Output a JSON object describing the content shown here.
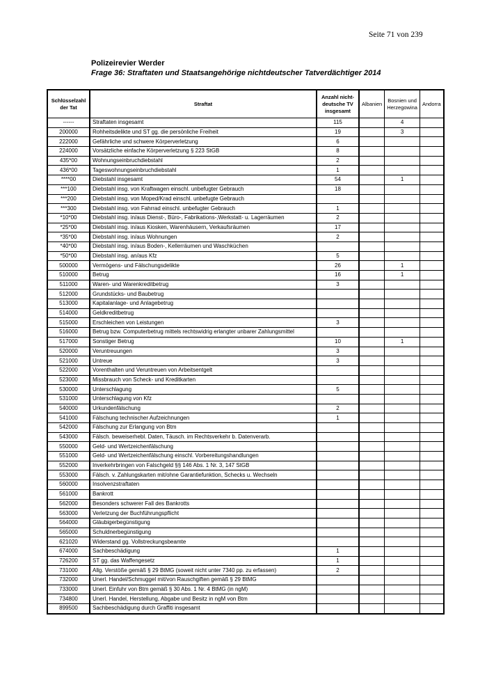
{
  "page_number": "Seite 71 von 239",
  "title": "Polizeirevier Werder",
  "subtitle": "Frage 36: Straftaten und Staatsangehörige nichtdeutscher Tatverdächtiger 2014",
  "table": {
    "headers": [
      "Schlüsselzahl der Tat",
      "Straftat",
      "Anzahl nicht-deutsche TV insgesamt",
      "Albanien",
      "Bosnien und Herzegowina",
      "Andorra"
    ],
    "rows": [
      [
        "------",
        "Straftaten insgesamt",
        "115",
        "",
        "4",
        ""
      ],
      [
        "200000",
        "Rohheitsdelikte und ST gg. die persönliche Freiheit",
        "19",
        "",
        "3",
        ""
      ],
      [
        "222000",
        "Gefährliche und schwere Körperverletzung",
        "6",
        "",
        "",
        ""
      ],
      [
        "224000",
        "Vorsätzliche einfache Körperverletzung § 223 StGB",
        "8",
        "",
        "",
        ""
      ],
      [
        "435*00",
        "Wohnungseinbruchdiebstahl",
        "2",
        "",
        "",
        ""
      ],
      [
        "436*00",
        "Tageswohnungseinbruchdiebstahl",
        "1",
        "",
        "",
        ""
      ],
      [
        "****00",
        "Diebstahl insgesamt",
        "54",
        "",
        "1",
        ""
      ],
      [
        "***100",
        "Diebstahl insg. von Kraftwagen einschl. unbefugter Gebrauch",
        "18",
        "",
        "",
        ""
      ],
      [
        "***200",
        "Diebstahl insg. von Moped/Krad einschl. unbefugte Gebrauch",
        "",
        "",
        "",
        ""
      ],
      [
        "***300",
        "Diebstahl insg. von Fahrrad einschl. unbefugter Gebrauch",
        "1",
        "",
        "",
        ""
      ],
      [
        "*10*00",
        "Diebstahl insg. in/aus Dienst-, Büro-, Fabrikations-,Werkstatt- u. Lagerräumen",
        "2",
        "",
        "",
        ""
      ],
      [
        "*25*00",
        "Diebstahl insg. in/aus Kiosken, Warenhäusern, Verkaufsräumen",
        "17",
        "",
        "",
        ""
      ],
      [
        "*35*00",
        "Diebstahl insg. in/aus Wohnungen",
        "2",
        "",
        "",
        ""
      ],
      [
        "*40*00",
        "Diebstahl insg. in/aus Boden-, Kellerräumen und Waschküchen",
        "",
        "",
        "",
        ""
      ],
      [
        "*50*00",
        "Diebstahl insg. an/aus Kfz",
        "5",
        "",
        "",
        ""
      ],
      [
        "500000",
        "Vermögens- und Fälschungsdelikte",
        "26",
        "",
        "1",
        ""
      ],
      [
        "510000",
        "Betrug",
        "16",
        "",
        "1",
        ""
      ],
      [
        "511000",
        "Waren- und Warenkreditbetrug",
        "3",
        "",
        "",
        ""
      ],
      [
        "512000",
        "Grundstücks- und Baubetrug",
        "",
        "",
        "",
        ""
      ],
      [
        "513000",
        "Kapitalanlage- und Anlagebetrug",
        "",
        "",
        "",
        ""
      ],
      [
        "514000",
        "Geldkreditbetrug",
        "",
        "",
        "",
        ""
      ],
      [
        "515000",
        "Erschleichen von Leistungen",
        "3",
        "",
        "",
        ""
      ],
      [
        "516000",
        "Betrug bzw. Computerbetrug mittels rechtswidrig erlangter unbarer Zahlungsmittel",
        "",
        "",
        "",
        ""
      ],
      [
        "517000",
        "Sonstiger Betrug",
        "10",
        "",
        "1",
        ""
      ],
      [
        "520000",
        "Veruntreuungen",
        "3",
        "",
        "",
        ""
      ],
      [
        "521000",
        "Untreue",
        "3",
        "",
        "",
        ""
      ],
      [
        "522000",
        "Vorenthalten und Veruntreuen von Arbeitsentgelt",
        "",
        "",
        "",
        ""
      ],
      [
        "523000",
        "Missbrauch von Scheck- und Kreditkarten",
        "",
        "",
        "",
        ""
      ],
      [
        "530000",
        "Unterschlagung",
        "5",
        "",
        "",
        ""
      ],
      [
        "531000",
        "Unterschlagung von Kfz",
        "",
        "",
        "",
        ""
      ],
      [
        "540000",
        "Urkundenfälschung",
        "2",
        "",
        "",
        ""
      ],
      [
        "541000",
        "Fälschung technischer Aufzeichnungen",
        "1",
        "",
        "",
        ""
      ],
      [
        "542000",
        "Fälschung zur Erlangung von Btm",
        "",
        "",
        "",
        ""
      ],
      [
        "543000",
        "Fälsch. beweiserhebl. Daten, Täusch. im Rechtsverkehr b. Datenverarb.",
        "",
        "",
        "",
        ""
      ],
      [
        "550000",
        "Geld- und Wertzeichenfälschung",
        "",
        "",
        "",
        ""
      ],
      [
        "551000",
        "Geld- und Wertzeichenfälschung einschl. Vorbereitungshandlungen",
        "",
        "",
        "",
        ""
      ],
      [
        "552000",
        "Inverkehrbringen von Falschgeld §§ 146 Abs. 1 Nr. 3, 147 StGB",
        "",
        "",
        "",
        ""
      ],
      [
        "553000",
        "Fälsch. v. Zahlungskarten mit/ohne Garantiefunktion, Schecks u. Wechseln",
        "",
        "",
        "",
        ""
      ],
      [
        "560000",
        "Insolvenzstraftaten",
        "",
        "",
        "",
        ""
      ],
      [
        "561000",
        "Bankrott",
        "",
        "",
        "",
        ""
      ],
      [
        "562000",
        "Besonders schwerer Fall des Bankrotts",
        "",
        "",
        "",
        ""
      ],
      [
        "563000",
        "Verletzung der Buchführungspflicht",
        "",
        "",
        "",
        ""
      ],
      [
        "564000",
        "Gläubigerbegünstigung",
        "",
        "",
        "",
        ""
      ],
      [
        "565000",
        "Schuldnerbegünstigung",
        "",
        "",
        "",
        ""
      ],
      [
        "621020",
        "Widerstand gg. Vollstreckungsbeamte",
        "",
        "",
        "",
        ""
      ],
      [
        "674000",
        "Sachbeschädigung",
        "1",
        "",
        "",
        ""
      ],
      [
        "726200",
        "ST gg. das Waffengesetz",
        "1",
        "",
        "",
        ""
      ],
      [
        "731000",
        "Allg. Verstöße gemäß § 29 BtMG (soweit nicht unter 7340 pp. zu erfassen)",
        "2",
        "",
        "",
        ""
      ],
      [
        "732000",
        "Unerl. Handel/Schmuggel mit/von Rauschgiften gemäß § 29 BtMG",
        "",
        "",
        "",
        ""
      ],
      [
        "733000",
        "Unerl. Einfuhr von Btm gemäß § 30 Abs. 1 Nr. 4 BtMG (in ngM)",
        "",
        "",
        "",
        ""
      ],
      [
        "734800",
        "Unerl. Handel, Herstellung, Abgabe und Besitz in ngM von Btm",
        "",
        "",
        "",
        ""
      ],
      [
        "899500",
        "Sachbeschädigung durch Graffiti insgesamt",
        "",
        "",
        "",
        ""
      ]
    ]
  }
}
